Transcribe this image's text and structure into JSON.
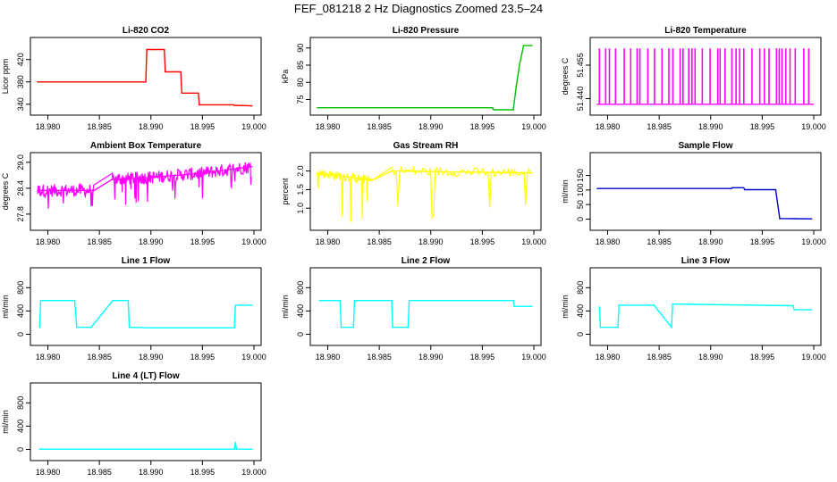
{
  "title": "FEF_081218  2 Hz Diagnostics Zoomed 23.5–24",
  "chart_data": [
    {
      "type": "line",
      "title": "Li-820 CO2",
      "ylabel": "Licor ppm",
      "color": "#ff0000",
      "xlim": [
        18.979,
        19.0
      ],
      "ylim": [
        330,
        450
      ],
      "xticks": [
        18.98,
        18.985,
        18.99,
        18.995,
        19.0
      ],
      "xticklabels": [
        "18.980",
        "18.985",
        "18.990",
        "18.995",
        "19.000"
      ],
      "yticks": [
        340,
        380,
        420
      ],
      "yticklabels": [
        "340",
        "380",
        "420"
      ],
      "x": [
        18.979,
        18.9895,
        18.9896,
        18.9913,
        18.9914,
        18.9929,
        18.993,
        18.9946,
        18.9947,
        18.998,
        18.9981,
        18.9998
      ],
      "y": [
        380,
        380,
        438,
        438,
        398,
        398,
        360,
        360,
        339,
        339,
        338,
        337
      ]
    },
    {
      "type": "line",
      "title": "Li-820 Pressure",
      "ylabel": "kPa",
      "color": "#00c000",
      "xlim": [
        18.979,
        19.0
      ],
      "ylim": [
        72.0,
        91.5
      ],
      "xticks": [
        18.98,
        18.985,
        18.99,
        18.995,
        19.0
      ],
      "xticklabels": [
        "18.980",
        "18.985",
        "18.990",
        "18.995",
        "19.000"
      ],
      "yticks": [
        75,
        80,
        85,
        90
      ],
      "yticklabels": [
        "75",
        "80",
        "85",
        "90"
      ],
      "x": [
        18.979,
        18.996,
        18.9961,
        18.998,
        18.9983,
        18.9986,
        18.999,
        18.9998
      ],
      "y": [
        72.6,
        72.6,
        72.0,
        72.0,
        79.0,
        85.0,
        90.7,
        90.7
      ]
    },
    {
      "type": "line",
      "title": "Li-820 Temperature",
      "ylabel": "degrees C",
      "color": "#ff00ff",
      "xlim": [
        18.979,
        19.0
      ],
      "ylim": [
        51.435,
        51.465
      ],
      "xticks": [
        18.98,
        18.985,
        18.99,
        18.995,
        19.0
      ],
      "xticklabels": [
        "18.980",
        "18.985",
        "18.990",
        "18.995",
        "19.000"
      ],
      "yticks": [
        51.44,
        51.455
      ],
      "yticklabels": [
        "51.440",
        "51.455"
      ],
      "x": [
        18.979,
        18.99995
      ],
      "y": [
        51.4375,
        51.4375
      ]
    },
    {
      "type": "line",
      "title": "Ambient Box Temperature",
      "ylabel": "degrees C",
      "color": "#ff00ff",
      "xlim": [
        18.979,
        19.0
      ],
      "ylim": [
        27.55,
        29.1
      ],
      "xticks": [
        18.98,
        18.985,
        18.99,
        18.995,
        19.0
      ],
      "xticklabels": [
        "18.980",
        "18.985",
        "18.990",
        "18.995",
        "19.000"
      ],
      "yticks": [
        27.8,
        28.4,
        29.0
      ],
      "yticklabels": [
        "27.8",
        "28.4",
        "29.0"
      ],
      "x": [
        18.979,
        18.9845,
        18.9862,
        18.99,
        18.995,
        18.9998
      ],
      "y": [
        28.35,
        28.35,
        28.6,
        28.65,
        28.75,
        28.9
      ]
    },
    {
      "type": "line",
      "title": "Gas Stream RH",
      "ylabel": "percent",
      "color": "#ffff00",
      "xlim": [
        18.979,
        19.0
      ],
      "ylim": [
        0.55,
        2.35
      ],
      "xticks": [
        18.98,
        18.985,
        18.99,
        18.995,
        19.0
      ],
      "xticklabels": [
        "18.980",
        "18.985",
        "18.990",
        "18.995",
        "19.000"
      ],
      "yticks": [
        1.0,
        1.5,
        2.0
      ],
      "yticklabels": [
        "1.0",
        "1.5",
        "2.0"
      ],
      "x": [
        18.979,
        18.9843,
        18.9862,
        18.9998
      ],
      "y": [
        1.95,
        1.75,
        2.0,
        1.95
      ]
    },
    {
      "type": "line",
      "title": "Sample Flow",
      "ylabel": "ml/min",
      "color": "#0000cc",
      "xlim": [
        18.979,
        19.0
      ],
      "ylim": [
        -20,
        210
      ],
      "xticks": [
        18.98,
        18.985,
        18.99,
        18.995,
        19.0
      ],
      "xticklabels": [
        "18.980",
        "18.985",
        "18.990",
        "18.995",
        "19.000"
      ],
      "yticks": [
        0,
        50,
        100,
        150
      ],
      "yticklabels": [
        "0",
        "50",
        "100",
        "150"
      ],
      "x": [
        18.979,
        18.992,
        18.9921,
        18.9932,
        18.9933,
        18.9963,
        18.9967,
        18.9998
      ],
      "y": [
        105,
        105,
        108,
        108,
        101,
        101,
        2,
        1
      ]
    },
    {
      "type": "line",
      "title": "Line 1 Flow",
      "ylabel": "ml/min",
      "color": "#00ffff",
      "xlim": [
        18.979,
        19.0
      ],
      "ylim": [
        -100,
        1050
      ],
      "xticks": [
        18.98,
        18.985,
        18.99,
        18.995,
        19.0
      ],
      "xticklabels": [
        "18.980",
        "18.985",
        "18.990",
        "18.995",
        "19.000"
      ],
      "yticks": [
        0,
        400,
        800
      ],
      "yticklabels": [
        "0",
        "400",
        "800"
      ],
      "x": [
        18.9792,
        18.9793,
        18.9826,
        18.9828,
        18.9842,
        18.9863,
        18.9878,
        18.9879,
        18.99,
        18.9981,
        18.9982,
        18.9998
      ],
      "y": [
        120,
        580,
        580,
        120,
        120,
        580,
        580,
        120,
        110,
        110,
        500,
        500
      ]
    },
    {
      "type": "line",
      "title": "Line 2 Flow",
      "ylabel": "ml/min",
      "color": "#00ffff",
      "xlim": [
        18.979,
        19.0
      ],
      "ylim": [
        -100,
        1050
      ],
      "xticks": [
        18.98,
        18.985,
        18.99,
        18.995,
        19.0
      ],
      "xticklabels": [
        "18.980",
        "18.985",
        "18.990",
        "18.995",
        "19.000"
      ],
      "yticks": [
        0,
        400,
        800
      ],
      "yticklabels": [
        "0",
        "400",
        "800"
      ],
      "x": [
        18.9792,
        18.9812,
        18.9813,
        18.9825,
        18.9826,
        18.9862,
        18.9863,
        18.9878,
        18.9879,
        18.998,
        18.9981,
        18.9998
      ],
      "y": [
        580,
        580,
        120,
        120,
        580,
        580,
        120,
        120,
        580,
        580,
        480,
        480
      ]
    },
    {
      "type": "line",
      "title": "Line 3 Flow",
      "ylabel": "ml/min",
      "color": "#00ffff",
      "xlim": [
        18.979,
        19.0
      ],
      "ylim": [
        -100,
        1050
      ],
      "xticks": [
        18.98,
        18.985,
        18.99,
        18.995,
        19.0
      ],
      "xticklabels": [
        "18.980",
        "18.985",
        "18.990",
        "18.995",
        "19.000"
      ],
      "yticks": [
        0,
        400,
        800
      ],
      "yticklabels": [
        "0",
        "400",
        "800"
      ],
      "x": [
        18.9792,
        18.9793,
        18.981,
        18.9811,
        18.9845,
        18.9862,
        18.9863,
        18.998,
        18.9981,
        18.9998
      ],
      "y": [
        470,
        120,
        120,
        500,
        500,
        120,
        520,
        490,
        420,
        420
      ]
    },
    {
      "type": "line",
      "title": "Line 4 (LT) Flow",
      "ylabel": "ml/min",
      "color": "#00ffff",
      "xlim": [
        18.979,
        19.0
      ],
      "ylim": [
        -100,
        1050
      ],
      "xticks": [
        18.98,
        18.985,
        18.99,
        18.995,
        19.0
      ],
      "xticklabels": [
        "18.980",
        "18.985",
        "18.990",
        "18.995",
        "19.000"
      ],
      "yticks": [
        0,
        400,
        800
      ],
      "yticklabels": [
        "0",
        "400",
        "800"
      ],
      "x": [
        18.9792,
        18.9981,
        18.9982,
        18.9983,
        18.9998
      ],
      "y": [
        5,
        5,
        120,
        5,
        5
      ]
    }
  ]
}
